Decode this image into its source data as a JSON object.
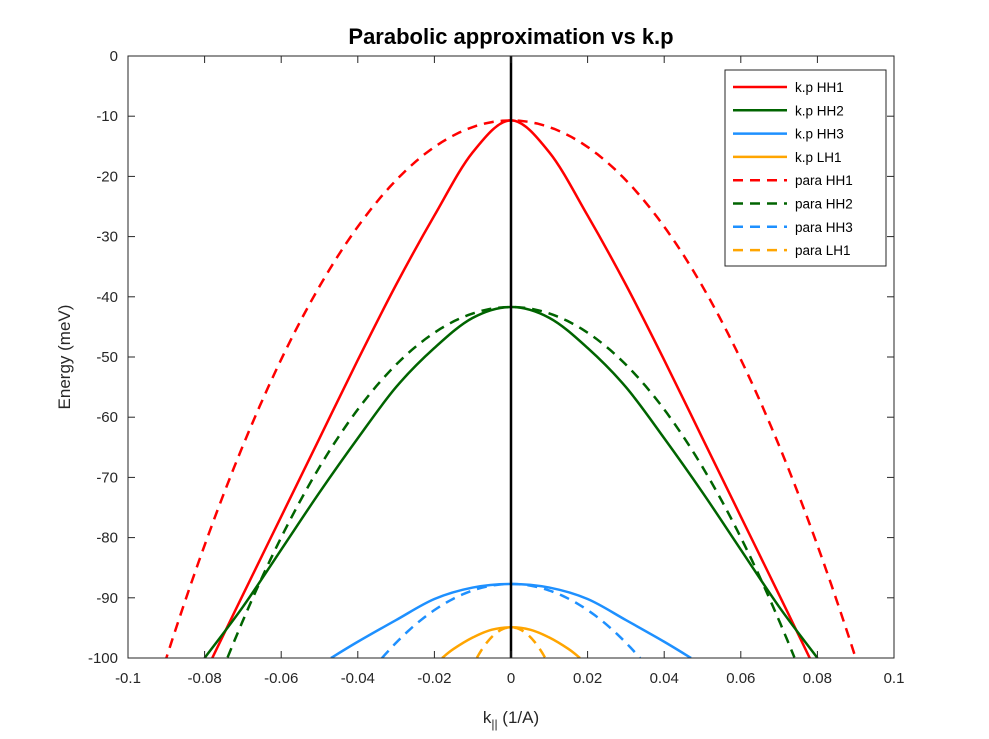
{
  "chart_data": {
    "type": "line",
    "title": "Parabolic approximation vs k.p",
    "xlabel_main": "k",
    "xlabel_sub": "||",
    "xlabel_unit": " (1/A)",
    "ylabel": "Energy (meV)",
    "xlim": [
      -0.1,
      0.1
    ],
    "ylim": [
      -100,
      0
    ],
    "xticks": [
      -0.1,
      -0.08,
      -0.06,
      -0.04,
      -0.02,
      0,
      0.02,
      0.04,
      0.06,
      0.08,
      0.1
    ],
    "xtick_labels": [
      "-0.1",
      "-0.08",
      "-0.06",
      "-0.04",
      "-0.02",
      "0",
      "0.02",
      "0.04",
      "0.06",
      "0.08",
      "0.1"
    ],
    "yticks": [
      0,
      -10,
      -20,
      -30,
      -40,
      -50,
      -60,
      -70,
      -80,
      -90,
      -100
    ],
    "ytick_labels": [
      "0",
      "-10",
      "-20",
      "-30",
      "-40",
      "-50",
      "-60",
      "-70",
      "-80",
      "-90",
      "-100"
    ],
    "grid": false,
    "legend_position": "top-right",
    "vertical_line": {
      "x": 0,
      "color": "#000000"
    },
    "series": [
      {
        "name": "k.p HH1",
        "style": "solid",
        "color": "#ff0000",
        "x": [
          -0.078,
          -0.07,
          -0.06,
          -0.05,
          -0.04,
          -0.03,
          -0.02,
          -0.01,
          0,
          0.01,
          0.02,
          0.03,
          0.04,
          0.05,
          0.06,
          0.07,
          0.078
        ],
        "y": [
          -100,
          -89.5,
          -76.5,
          -63.5,
          -50.5,
          -38,
          -26.5,
          -16,
          -10.7,
          -16,
          -26.5,
          -38,
          -50.5,
          -63.5,
          -76.5,
          -89.5,
          -100
        ]
      },
      {
        "name": "k.p HH2",
        "style": "solid",
        "color": "#006400",
        "x": [
          -0.08,
          -0.07,
          -0.06,
          -0.05,
          -0.04,
          -0.03,
          -0.02,
          -0.01,
          0,
          0.01,
          0.02,
          0.03,
          0.04,
          0.05,
          0.06,
          0.07,
          0.08
        ],
        "y": [
          -100,
          -91.5,
          -82,
          -72.5,
          -63.5,
          -55,
          -48.5,
          -43.5,
          -41.7,
          -43.5,
          -48.5,
          -55,
          -63.5,
          -72.5,
          -82,
          -91.5,
          -100
        ]
      },
      {
        "name": "k.p HH3",
        "style": "solid",
        "color": "#1e90ff",
        "x": [
          -0.047,
          -0.04,
          -0.03,
          -0.02,
          -0.01,
          0,
          0.01,
          0.02,
          0.03,
          0.04,
          0.047
        ],
        "y": [
          -100,
          -97.3,
          -93.7,
          -90.2,
          -88.3,
          -87.7,
          -88.3,
          -90.2,
          -93.7,
          -97.3,
          -100
        ]
      },
      {
        "name": "k.p LH1",
        "style": "solid",
        "color": "#ffa500",
        "x": [
          -0.018,
          -0.015,
          -0.01,
          -0.005,
          0,
          0.005,
          0.01,
          0.015,
          0.018
        ],
        "y": [
          -100,
          -98.5,
          -96.6,
          -95.3,
          -94.9,
          -95.3,
          -96.6,
          -98.5,
          -100
        ]
      },
      {
        "name": "para HH1",
        "style": "dashed",
        "color": "#ff0000",
        "vertex": [
          0,
          -10.7
        ],
        "curvature": 11026,
        "xrange": [
          -0.0905,
          0.0905
        ]
      },
      {
        "name": "para HH2",
        "style": "dashed",
        "color": "#006400",
        "vertex": [
          0,
          -41.7
        ],
        "curvature": 10630,
        "xrange": [
          -0.074,
          0.074
        ]
      },
      {
        "name": "para HH3",
        "style": "dashed",
        "color": "#1e90ff",
        "vertex": [
          0,
          -87.7
        ],
        "curvature": 10850,
        "xrange": [
          -0.0337,
          0.0337
        ]
      },
      {
        "name": "para LH1",
        "style": "dashed",
        "color": "#ffa500",
        "vertex": [
          0,
          -94.9
        ],
        "curvature": 63750,
        "xrange": [
          -0.0089,
          0.0089
        ]
      }
    ]
  }
}
